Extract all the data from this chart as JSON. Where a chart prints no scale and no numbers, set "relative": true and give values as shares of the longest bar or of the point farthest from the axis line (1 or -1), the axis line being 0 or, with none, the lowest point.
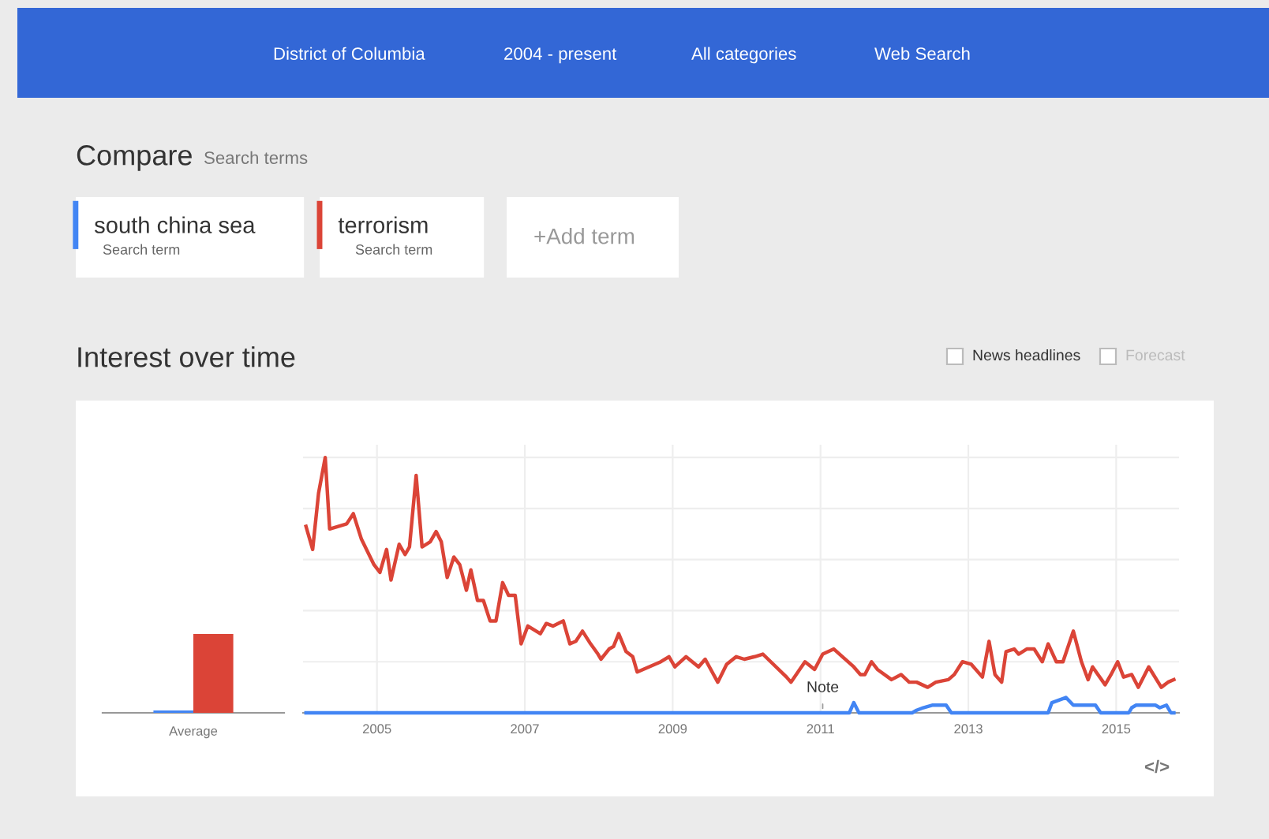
{
  "chart_data": [
    {
      "type": "other",
      "annotations": [
        "District of Columbia",
        "2004 - present",
        "All categories",
        "Web Search",
        "Compare",
        "Search terms",
        "Search term",
        "Search term",
        "+Add term",
        "News headlines",
        "Forecast",
        "</>"
      ]
    },
    {
      "type": "bar",
      "relative": true,
      "categories": [
        "Average"
      ],
      "series": [
        {
          "color": "#4285f4",
          "values": [
            0.03
          ]
        },
        {
          "color": "#db4437",
          "values": [
            1
          ]
        }
      ]
    },
    {
      "type": "line",
      "title": "Interest over time",
      "relative": true,
      "xlim": [
        2004,
        2015.85
      ],
      "xticks": [
        2005,
        2007,
        2009,
        2011,
        2013,
        2015
      ],
      "grid": true,
      "legend": "top left",
      "line_style": "solid",
      "annotations": [
        {
          "text": "Note",
          "x": 2011.03,
          "y": 0
        }
      ],
      "series": [
        {
          "name": "south china sea",
          "color": "#4285f4",
          "x": [
            2004.04,
            2011.26,
            2011.39,
            2011.45,
            2011.52,
            2012.24,
            2012.3,
            2012.39,
            2012.51,
            2012.7,
            2012.77,
            2014.08,
            2014.13,
            2014.32,
            2014.42,
            2014.72,
            2014.79,
            2015.17,
            2015.21,
            2015.27,
            2015.53,
            2015.59,
            2015.68,
            2015.74,
            2015.78
          ],
          "values": [
            0,
            0,
            0,
            0.04,
            0,
            0,
            0.01,
            0.02,
            0.03,
            0.03,
            0,
            0,
            0.04,
            0.06,
            0.03,
            0.03,
            0,
            0,
            0.02,
            0.03,
            0.03,
            0.02,
            0.03,
            0,
            0
          ]
        },
        {
          "name": "terrorism",
          "color": "#db4437",
          "x": [
            2004.04,
            2004.13,
            2004.21,
            2004.3,
            2004.36,
            2004.59,
            2004.68,
            2004.79,
            2004.96,
            2005.04,
            2005.13,
            2005.19,
            2005.3,
            2005.38,
            2005.44,
            2005.53,
            2005.61,
            2005.72,
            2005.8,
            2005.87,
            2005.95,
            2006.04,
            2006.12,
            2006.21,
            2006.27,
            2006.36,
            2006.44,
            2006.53,
            2006.61,
            2006.7,
            2006.78,
            2006.87,
            2006.95,
            2007.04,
            2007.21,
            2007.29,
            2007.38,
            2007.52,
            2007.61,
            2007.69,
            2007.78,
            2007.89,
            2007.99,
            2008.03,
            2008.14,
            2008.2,
            2008.27,
            2008.37,
            2008.46,
            2008.52,
            2008.84,
            2008.95,
            2009.03,
            2009.18,
            2009.35,
            2009.44,
            2009.61,
            2009.73,
            2009.86,
            2009.97,
            2010.11,
            2010.22,
            2010.54,
            2010.6,
            2010.79,
            2010.92,
            2011.03,
            2011.18,
            2011.45,
            2011.54,
            2011.6,
            2011.69,
            2011.77,
            2011.96,
            2012.09,
            2012.2,
            2012.3,
            2012.45,
            2012.56,
            2012.73,
            2012.81,
            2012.92,
            2013.04,
            2013.19,
            2013.28,
            2013.36,
            2013.45,
            2013.51,
            2013.62,
            2013.68,
            2013.79,
            2013.89,
            2014.0,
            2014.08,
            2014.19,
            2014.28,
            2014.42,
            2014.53,
            2014.62,
            2014.68,
            2014.85,
            2014.93,
            2015.02,
            2015.1,
            2015.21,
            2015.3,
            2015.44,
            2015.61,
            2015.7,
            2015.78
          ],
          "values": [
            0.73,
            0.64,
            0.86,
            1.0,
            0.72,
            0.74,
            0.78,
            0.68,
            0.58,
            0.55,
            0.64,
            0.52,
            0.66,
            0.62,
            0.65,
            0.93,
            0.65,
            0.67,
            0.71,
            0.67,
            0.53,
            0.61,
            0.58,
            0.48,
            0.56,
            0.44,
            0.44,
            0.36,
            0.36,
            0.51,
            0.46,
            0.46,
            0.27,
            0.34,
            0.31,
            0.35,
            0.34,
            0.36,
            0.27,
            0.28,
            0.32,
            0.27,
            0.23,
            0.21,
            0.25,
            0.26,
            0.31,
            0.24,
            0.22,
            0.16,
            0.2,
            0.22,
            0.18,
            0.22,
            0.18,
            0.21,
            0.12,
            0.19,
            0.22,
            0.21,
            0.22,
            0.23,
            0.14,
            0.12,
            0.2,
            0.17,
            0.23,
            0.25,
            0.18,
            0.15,
            0.15,
            0.2,
            0.17,
            0.13,
            0.15,
            0.12,
            0.12,
            0.1,
            0.12,
            0.13,
            0.15,
            0.2,
            0.19,
            0.14,
            0.28,
            0.15,
            0.12,
            0.24,
            0.25,
            0.23,
            0.25,
            0.25,
            0.2,
            0.27,
            0.2,
            0.2,
            0.32,
            0.2,
            0.13,
            0.18,
            0.11,
            0.15,
            0.2,
            0.14,
            0.15,
            0.1,
            0.18,
            0.1,
            0.12,
            0.13
          ]
        }
      ]
    }
  ]
}
